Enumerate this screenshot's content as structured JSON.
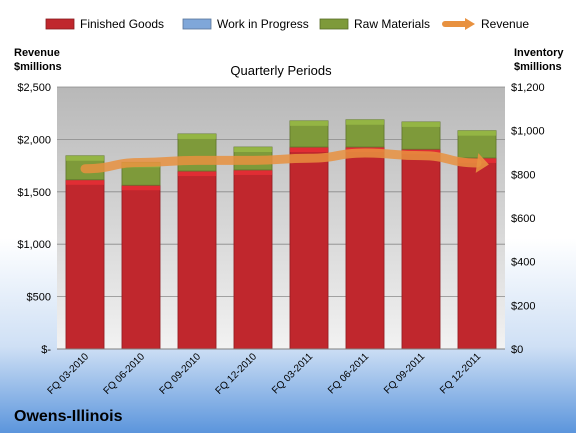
{
  "chart_data": {
    "type": "bar",
    "stacked": true,
    "title": "Quarterly Periods",
    "company": "Owens-Illinois",
    "categories": [
      "FQ 03-2010",
      "FQ 06-2010",
      "FQ 09-2010",
      "FQ 12-2010",
      "FQ 03-2011",
      "FQ 06-2011",
      "FQ 09-2011",
      "FQ 12-2011"
    ],
    "series": [
      {
        "name": "Finished Goods",
        "axis": "right",
        "color": "#c0272d",
        "values": [
          775,
          750,
          815,
          820,
          925,
          925,
          915,
          875
        ]
      },
      {
        "name": "Work in Progress",
        "axis": "right",
        "color": "#7fa7d9",
        "values": [
          0,
          0,
          0,
          0,
          0,
          0,
          0,
          0
        ]
      },
      {
        "name": "Raw Materials",
        "axis": "right",
        "color": "#7e9a3a",
        "values": [
          110,
          105,
          170,
          105,
          120,
          125,
          125,
          125
        ]
      },
      {
        "name": "Revenue",
        "axis": "left",
        "type": "line",
        "color": "#e8913f",
        "values": [
          1720,
          1780,
          1800,
          1800,
          1820,
          1870,
          1845,
          1775
        ]
      }
    ],
    "yleft": {
      "label_line1": "Revenue",
      "label_line2": "$millions",
      "ylim": [
        0,
        2500
      ],
      "ticks": [
        0,
        500,
        1000,
        1500,
        2000,
        2500
      ],
      "tick_labels": [
        "$-",
        "$500",
        "$1,000",
        "$1,500",
        "$2,000",
        "$2,500"
      ]
    },
    "yright": {
      "label_line1": "Inventory",
      "label_line2": "$millions",
      "ylim": [
        0,
        1200
      ],
      "ticks": [
        0,
        200,
        400,
        600,
        800,
        1000,
        1200
      ],
      "tick_labels": [
        "$0",
        "$200",
        "$400",
        "$600",
        "$800",
        "$1,000",
        "$1,200"
      ]
    },
    "grid": true,
    "legend_position": "top"
  }
}
